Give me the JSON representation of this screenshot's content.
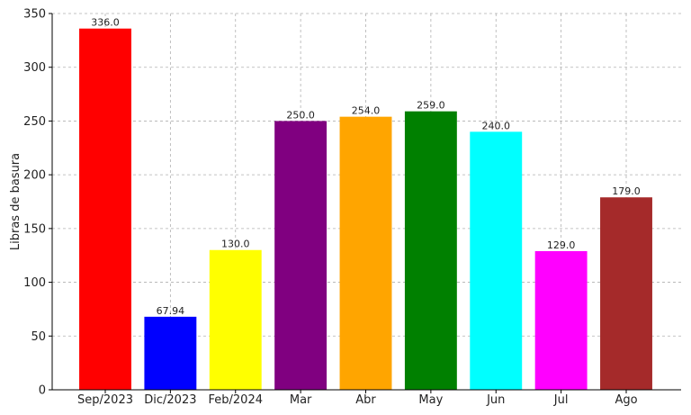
{
  "chart_data": {
    "type": "bar",
    "title": "",
    "xlabel": "",
    "ylabel": "Libras de basura",
    "categories": [
      "Sep/2023",
      "Dic/2023",
      "Feb/2024",
      "Mar",
      "Abr",
      "May",
      "Jun",
      "Jul",
      "Ago"
    ],
    "values": [
      336.0,
      67.94,
      130.0,
      250.0,
      254.0,
      259.0,
      240.0,
      129.0,
      179.0
    ],
    "data_labels": [
      "336.0",
      "67.94",
      "130.0",
      "250.0",
      "254.0",
      "259.0",
      "240.0",
      "129.0",
      "179.0"
    ],
    "colors": [
      "#ff0000",
      "#0000ff",
      "#ffff00",
      "#800080",
      "#ffa500",
      "#008000",
      "#00ffff",
      "#ff00ff",
      "#a52a2a"
    ],
    "ylim": [
      0,
      350
    ],
    "yticks": [
      0,
      50,
      100,
      150,
      200,
      250,
      300,
      350
    ],
    "grid": true,
    "legend": "none"
  }
}
